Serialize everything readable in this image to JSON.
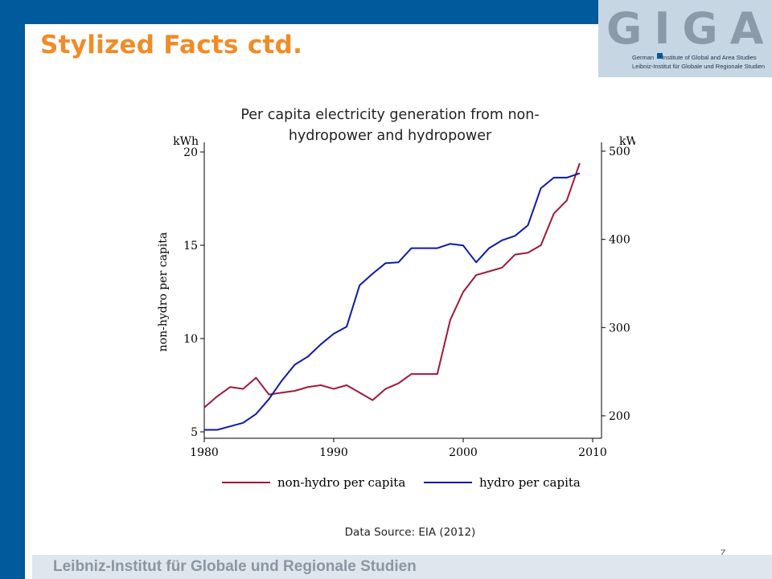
{
  "slide": {
    "title": "Stylized Facts ctd.",
    "source": "Data Source: EIA (2012)",
    "page_number": "7",
    "footer": "Leibniz-Institut für Globale und Regionale Studien"
  },
  "logo": {
    "mark": "GIGA",
    "line1_a": "German",
    "line1_b": "Institute of Global and Area Studies",
    "line2": "Leibniz-Institut für Globale und Regionale Studien"
  },
  "colors": {
    "brand_blue": "#005a9c",
    "title_orange": "#f08c28",
    "non_hydro": "#a0183a",
    "hydro": "#0d1aa6"
  },
  "chart_data": {
    "type": "line",
    "title": "Per capita electricity generation from non-hydropower and hydropower",
    "title_lines": [
      "Per capita electricity generation from non-",
      "hydropower and hydropower"
    ],
    "x": [
      1980,
      1981,
      1982,
      1983,
      1984,
      1985,
      1986,
      1987,
      1988,
      1989,
      1990,
      1991,
      1992,
      1993,
      1994,
      1995,
      1996,
      1997,
      1998,
      1999,
      2000,
      2001,
      2002,
      2003,
      2004,
      2005,
      2006,
      2007,
      2008,
      2009
    ],
    "xlim": [
      1980,
      2010
    ],
    "xticks": [
      "1980",
      "1990",
      "2000",
      "2010"
    ],
    "y_left": {
      "label": "non-hydro per capita",
      "unit": "kWh",
      "lim": [
        5,
        20
      ],
      "ticks": [
        "5",
        "10",
        "15",
        "20"
      ]
    },
    "y_right": {
      "label": "hydro per capita",
      "unit": "kWh",
      "lim": [
        180,
        500
      ],
      "ticks": [
        "200",
        "300",
        "400",
        "500"
      ]
    },
    "series": [
      {
        "name": "non-hydro per capita",
        "axis": "left",
        "values": [
          6.3,
          6.9,
          7.4,
          7.3,
          7.9,
          7.0,
          7.1,
          7.2,
          7.4,
          7.5,
          7.3,
          7.5,
          7.1,
          6.7,
          7.3,
          7.6,
          8.1,
          8.1,
          8.1,
          11.0,
          12.5,
          13.4,
          13.6,
          13.8,
          14.5,
          14.6,
          15.0,
          16.7,
          17.4,
          19.4
        ]
      },
      {
        "name": "hydro per capita",
        "axis": "right",
        "values": [
          184,
          184,
          188,
          192,
          202,
          219,
          240,
          258,
          267,
          281,
          293,
          301,
          348,
          361,
          373,
          374,
          390,
          390,
          390,
          395,
          393,
          374,
          390,
          399,
          404,
          416,
          458,
          470,
          470,
          475
        ]
      }
    ],
    "legend_position": "bottom",
    "grid": false
  }
}
